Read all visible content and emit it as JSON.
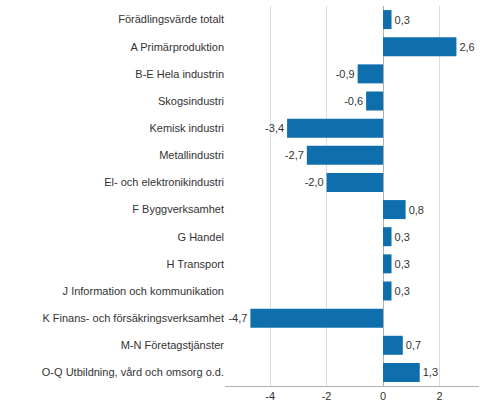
{
  "chart_data": {
    "type": "bar",
    "orientation": "horizontal",
    "categories": [
      "Förädlingsvärde totalt",
      "A Primärproduktion",
      "B-E Hela industrin",
      "Skogsindustri",
      "Kemisk industri",
      "Metallindustri",
      "El- och elektronikindustri",
      "F Byggverksamhet",
      "G Handel",
      "H Transport",
      "J Information och kommunikation",
      "K Finans- och försäkringsverksamhet",
      "M-N Företagstjänster",
      "O-Q Utbildning, vård och omsorg o.d."
    ],
    "values": [
      0.3,
      2.6,
      -0.9,
      -0.6,
      -3.4,
      -2.7,
      -2.0,
      0.8,
      0.3,
      0.3,
      0.3,
      -4.7,
      0.7,
      1.3
    ],
    "value_labels": [
      "0,3",
      "2,6",
      "-0,9",
      "-0,6",
      "-3,4",
      "-2,7",
      "-2,0",
      "0,8",
      "0,3",
      "0,3",
      "0,3",
      "-4,7",
      "0,7",
      "1,3"
    ],
    "color": "#0f6fac",
    "xlim": [
      -5.6,
      3.4
    ],
    "xticks": [
      -4,
      -2,
      0,
      2
    ],
    "grid": true,
    "data_labels": true
  }
}
